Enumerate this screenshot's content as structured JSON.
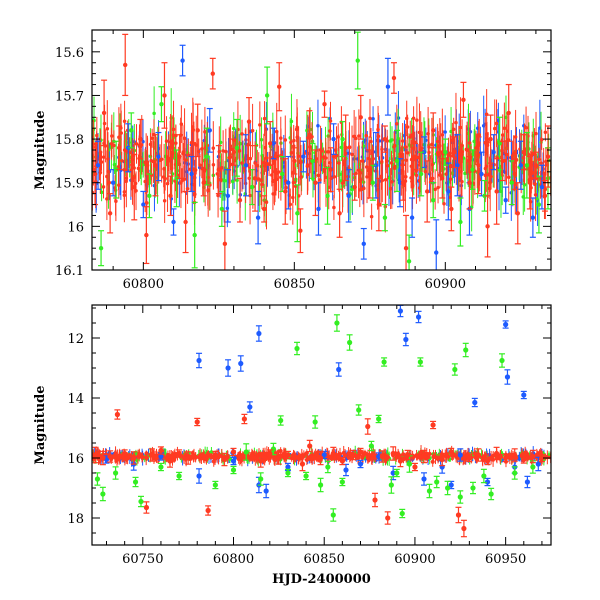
{
  "chart_data": [
    {
      "type": "scatter",
      "title": "",
      "xlabel": "",
      "ylabel": "Magnitude",
      "xlim": [
        60783,
        60935
      ],
      "ylim": [
        16.1,
        15.55
      ],
      "y_inverted": true,
      "error_bars": true,
      "grid": false,
      "legend": "none",
      "xticks": [
        "60800",
        "60850",
        "60900"
      ],
      "yticks": [
        "15.6",
        "15.7",
        "15.8",
        "15.9",
        "16",
        "16.1"
      ],
      "series": [
        {
          "color": "#1E5BFF",
          "points": [
            [
              60785,
              15.86
            ],
            [
              60790,
              15.9
            ],
            [
              60795,
              15.82
            ],
            [
              60800,
              15.95
            ],
            [
              60805,
              15.84
            ],
            [
              60810,
              15.99
            ],
            [
              60813,
              15.62
            ],
            [
              60816,
              15.88
            ],
            [
              60822,
              15.78
            ],
            [
              60828,
              15.93
            ],
            [
              60834,
              15.86
            ],
            [
              60838,
              15.98
            ],
            [
              60843,
              15.81
            ],
            [
              60848,
              15.9
            ],
            [
              60853,
              15.84
            ],
            [
              60858,
              15.96
            ],
            [
              60863,
              15.8
            ],
            [
              60868,
              15.93
            ],
            [
              60873,
              16.04
            ],
            [
              60877,
              15.86
            ],
            [
              60881,
              15.68
            ],
            [
              60885,
              15.9
            ],
            [
              60889,
              15.98
            ],
            [
              60893,
              15.83
            ],
            [
              60897,
              16.06
            ],
            [
              60901,
              15.92
            ],
            [
              60904,
              15.86
            ],
            [
              60908,
              15.96
            ],
            [
              60912,
              15.88
            ],
            [
              60916,
              15.83
            ],
            [
              60920,
              15.94
            ],
            [
              60925,
              15.86
            ],
            [
              60929,
              15.98
            ],
            [
              60932,
              15.91
            ]
          ]
        },
        {
          "color": "#33EE22",
          "points": [
            [
              60786,
              16.05
            ],
            [
              60791,
              15.87
            ],
            [
              60796,
              15.78
            ],
            [
              60802,
              15.93
            ],
            [
              60806,
              15.72
            ],
            [
              60811,
              15.89
            ],
            [
              60817,
              16.02
            ],
            [
              60821,
              15.84
            ],
            [
              60826,
              15.96
            ],
            [
              60831,
              15.82
            ],
            [
              60836,
              15.91
            ],
            [
              60841,
              15.7
            ],
            [
              60846,
              15.88
            ],
            [
              60851,
              15.97
            ],
            [
              60856,
              15.85
            ],
            [
              60861,
              15.93
            ],
            [
              60866,
              15.8
            ],
            [
              60871,
              15.62
            ],
            [
              60876,
              15.9
            ],
            [
              60880,
              15.98
            ],
            [
              60884,
              15.85
            ],
            [
              60888,
              16.08
            ],
            [
              60892,
              15.88
            ],
            [
              60896,
              15.94
            ],
            [
              60900,
              15.83
            ],
            [
              60905,
              15.99
            ],
            [
              60909,
              15.87
            ],
            [
              60913,
              15.93
            ],
            [
              60918,
              15.81
            ],
            [
              60922,
              15.9
            ],
            [
              60927,
              15.86
            ],
            [
              60931,
              15.95
            ],
            [
              60934,
              15.89
            ]
          ]
        },
        {
          "color": "#FF3A22",
          "points": [
            [
              60784,
              15.88
            ],
            [
              60787,
              15.74
            ],
            [
              60789,
              15.97
            ],
            [
              60792,
              15.82
            ],
            [
              60794,
              15.63
            ],
            [
              60797,
              15.91
            ],
            [
              60799,
              15.8
            ],
            [
              60801,
              16.02
            ],
            [
              60804,
              15.86
            ],
            [
              60807,
              15.7
            ],
            [
              60809,
              15.93
            ],
            [
              60812,
              15.84
            ],
            [
              60814,
              15.99
            ],
            [
              60818,
              15.78
            ],
            [
              60820,
              15.9
            ],
            [
              60823,
              15.65
            ],
            [
              60825,
              15.87
            ],
            [
              60827,
              16.04
            ],
            [
              60830,
              15.83
            ],
            [
              60832,
              15.94
            ],
            [
              60835,
              15.76
            ],
            [
              60837,
              15.89
            ],
            [
              60840,
              15.96
            ],
            [
              60842,
              15.81
            ],
            [
              60845,
              15.68
            ],
            [
              60847,
              15.92
            ],
            [
              60850,
              15.85
            ],
            [
              60852,
              16.01
            ],
            [
              60855,
              15.79
            ],
            [
              60857,
              15.9
            ],
            [
              60860,
              15.72
            ],
            [
              60862,
              15.87
            ],
            [
              60865,
              15.97
            ],
            [
              60867,
              15.82
            ],
            [
              60870,
              15.91
            ],
            [
              60872,
              15.75
            ],
            [
              60875,
              15.88
            ],
            [
              60878,
              15.95
            ],
            [
              60880,
              15.8
            ],
            [
              60883,
              15.66
            ],
            [
              60886,
              15.9
            ],
            [
              60887,
              16.05
            ],
            [
              60890,
              15.84
            ],
            [
              60894,
              15.92
            ],
            [
              60896,
              15.78
            ],
            [
              60899,
              15.89
            ],
            [
              60902,
              15.96
            ],
            [
              60903,
              15.83
            ],
            [
              60906,
              15.71
            ],
            [
              60908,
              15.9
            ],
            [
              60911,
              15.86
            ],
            [
              60914,
              16.0
            ],
            [
              60915,
              15.8
            ],
            [
              60917,
              15.92
            ],
            [
              60919,
              15.85
            ],
            [
              60921,
              15.74
            ],
            [
              60923,
              15.88
            ],
            [
              60924,
              15.97
            ],
            [
              60926,
              15.83
            ],
            [
              60928,
              15.9
            ],
            [
              60930,
              15.86
            ],
            [
              60933,
              15.93
            ],
            [
              60934,
              15.84
            ]
          ]
        }
      ]
    },
    {
      "type": "scatter",
      "title": "",
      "xlabel": "HJD-2400000",
      "ylabel": "Magnitude",
      "xlim": [
        60722,
        60975
      ],
      "ylim": [
        18.9,
        10.9
      ],
      "y_inverted": true,
      "error_bars": true,
      "grid": false,
      "legend": "none",
      "xticks": [
        "60750",
        "60800",
        "60850",
        "60900",
        "60950"
      ],
      "yticks": [
        "12",
        "14",
        "16",
        "18"
      ],
      "series": [
        {
          "color": "#1E5BFF",
          "points": [
            [
              60730,
              16.05
            ],
            [
              60745,
              16.2
            ],
            [
              60760,
              15.95
            ],
            [
              60781,
              12.75
            ],
            [
              60781,
              16.6
            ],
            [
              60797,
              13.0
            ],
            [
              60800,
              16.1
            ],
            [
              60804,
              12.85
            ],
            [
              60809,
              14.3
            ],
            [
              60814,
              11.85
            ],
            [
              60814,
              16.9
            ],
            [
              60818,
              17.1
            ],
            [
              60830,
              16.3
            ],
            [
              60850,
              15.9
            ],
            [
              60858,
              13.05
            ],
            [
              60862,
              16.4
            ],
            [
              60870,
              16.2
            ],
            [
              60880,
              15.95
            ],
            [
              60888,
              16.5
            ],
            [
              60892,
              11.1
            ],
            [
              60895,
              12.05
            ],
            [
              60902,
              11.3
            ],
            [
              60905,
              16.7
            ],
            [
              60915,
              16.3
            ],
            [
              60920,
              16.9
            ],
            [
              60925,
              15.9
            ],
            [
              60933,
              14.15
            ],
            [
              60940,
              16.8
            ],
            [
              60950,
              11.55
            ],
            [
              60951,
              13.3
            ],
            [
              60955,
              16.3
            ],
            [
              60960,
              13.9
            ],
            [
              60962,
              16.8
            ],
            [
              60968,
              16.2
            ]
          ]
        },
        {
          "color": "#33EE22",
          "points": [
            [
              60725,
              16.7
            ],
            [
              60728,
              17.2
            ],
            [
              60735,
              16.5
            ],
            [
              60746,
              16.8
            ],
            [
              60749,
              17.45
            ],
            [
              60760,
              16.3
            ],
            [
              60770,
              16.6
            ],
            [
              60790,
              16.9
            ],
            [
              60800,
              16.4
            ],
            [
              60807,
              15.8
            ],
            [
              60815,
              16.7
            ],
            [
              60822,
              15.7
            ],
            [
              60826,
              14.75
            ],
            [
              60830,
              16.5
            ],
            [
              60835,
              12.35
            ],
            [
              60840,
              16.6
            ],
            [
              60845,
              14.8
            ],
            [
              60848,
              16.9
            ],
            [
              60852,
              16.3
            ],
            [
              60855,
              17.9
            ],
            [
              60857,
              11.5
            ],
            [
              60860,
              16.8
            ],
            [
              60864,
              12.15
            ],
            [
              60869,
              14.4
            ],
            [
              60876,
              15.6
            ],
            [
              60880,
              14.7
            ],
            [
              60883,
              12.8
            ],
            [
              60887,
              16.9
            ],
            [
              60890,
              16.5
            ],
            [
              60893,
              17.85
            ],
            [
              60897,
              16.2
            ],
            [
              60903,
              12.8
            ],
            [
              60908,
              17.1
            ],
            [
              60912,
              16.8
            ],
            [
              60918,
              17.0
            ],
            [
              60922,
              13.05
            ],
            [
              60925,
              17.3
            ],
            [
              60928,
              12.4
            ],
            [
              60932,
              17.0
            ],
            [
              60938,
              16.6
            ],
            [
              60942,
              17.2
            ],
            [
              60948,
              12.75
            ],
            [
              60955,
              16.5
            ],
            [
              60965,
              16.3
            ]
          ]
        },
        {
          "color": "#FF3A22",
          "points": [
            [
              60724,
              15.9
            ],
            [
              60728,
              16.0
            ],
            [
              60732,
              15.95
            ],
            [
              60736,
              14.55
            ],
            [
              60740,
              15.85
            ],
            [
              60745,
              16.0
            ],
            [
              60752,
              17.65
            ],
            [
              60755,
              15.9
            ],
            [
              60760,
              15.75
            ],
            [
              60765,
              16.1
            ],
            [
              60770,
              15.85
            ],
            [
              60775,
              16.0
            ],
            [
              60780,
              14.8
            ],
            [
              60786,
              17.75
            ],
            [
              60790,
              15.9
            ],
            [
              60795,
              16.05
            ],
            [
              60800,
              15.8
            ],
            [
              60806,
              14.7
            ],
            [
              60810,
              15.95
            ],
            [
              60815,
              16.1
            ],
            [
              60820,
              15.85
            ],
            [
              60825,
              16.0
            ],
            [
              60830,
              15.9
            ],
            [
              60838,
              16.2
            ],
            [
              60842,
              15.6
            ],
            [
              60848,
              16.0
            ],
            [
              60855,
              15.85
            ],
            [
              60860,
              16.1
            ],
            [
              60866,
              15.9
            ],
            [
              60870,
              15.8
            ],
            [
              60874,
              14.95
            ],
            [
              60878,
              17.4
            ],
            [
              60882,
              15.95
            ],
            [
              60885,
              18.0
            ],
            [
              60888,
              15.85
            ],
            [
              60892,
              16.1
            ],
            [
              60896,
              15.9
            ],
            [
              60900,
              16.3
            ],
            [
              60905,
              15.95
            ],
            [
              60910,
              14.9
            ],
            [
              60915,
              16.05
            ],
            [
              60920,
              15.8
            ],
            [
              60924,
              17.9
            ],
            [
              60927,
              18.35
            ],
            [
              60930,
              16.0
            ],
            [
              60935,
              15.9
            ],
            [
              60940,
              16.1
            ],
            [
              60945,
              15.85
            ],
            [
              60950,
              16.0
            ],
            [
              60955,
              15.9
            ],
            [
              60960,
              16.05
            ],
            [
              60965,
              15.95
            ],
            [
              60970,
              16.0
            ]
          ]
        }
      ]
    }
  ]
}
